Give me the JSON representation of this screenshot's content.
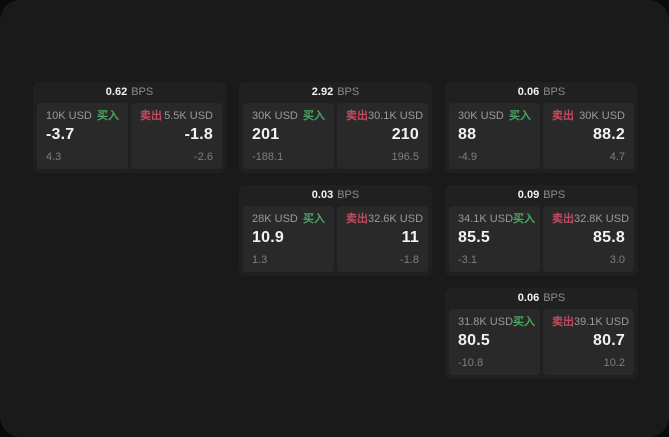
{
  "colors": {
    "buy": "#4aa562",
    "sell": "#c34a60",
    "value_text": "#f2f2f2",
    "label_text": "#9a9a9a"
  },
  "cards": [
    {
      "bps": "0.62",
      "unit": "BPS",
      "buy": {
        "amount": "10K USD",
        "action": "买入",
        "price": "-3.7",
        "change": "4.3"
      },
      "sell": {
        "action": "卖出",
        "amount": "5.5K USD",
        "price": "-1.8",
        "change": "-2.6"
      }
    },
    {
      "bps": "2.92",
      "unit": "BPS",
      "buy": {
        "amount": "30K USD",
        "action": "买入",
        "price": "201",
        "change": "-188.1"
      },
      "sell": {
        "action": "卖出",
        "amount": "30.1K USD",
        "price": "210",
        "change": "196.5"
      }
    },
    {
      "bps": "0.06",
      "unit": "BPS",
      "buy": {
        "amount": "30K USD",
        "action": "买入",
        "price": "88",
        "change": "-4.9"
      },
      "sell": {
        "action": "卖出",
        "amount": "30K USD",
        "price": "88.2",
        "change": "4.7"
      }
    },
    {
      "bps": "0.03",
      "unit": "BPS",
      "buy": {
        "amount": "28K USD",
        "action": "买入",
        "price": "10.9",
        "change": "1.3"
      },
      "sell": {
        "action": "卖出",
        "amount": "32.6K USD",
        "price": "11",
        "change": "-1.8"
      }
    },
    {
      "bps": "0.09",
      "unit": "BPS",
      "buy": {
        "amount": "34.1K USD",
        "action": "买入",
        "price": "85.5",
        "change": "-3.1"
      },
      "sell": {
        "action": "卖出",
        "amount": "32.8K USD",
        "price": "85.8",
        "change": "3.0"
      }
    },
    {
      "bps": "0.06",
      "unit": "BPS",
      "buy": {
        "amount": "31.8K USD",
        "action": "买入",
        "price": "80.5",
        "change": "-10.8"
      },
      "sell": {
        "action": "卖出",
        "amount": "39.1K USD",
        "price": "80.7",
        "change": "10.2"
      }
    }
  ]
}
